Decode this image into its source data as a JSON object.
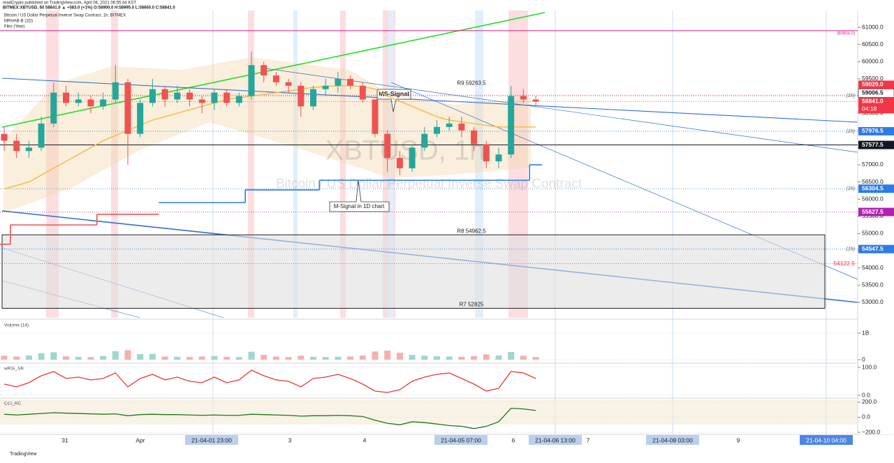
{
  "header": [
    "readCrypto published on TradingView.com, April 06, 2021 06:55:44 KST",
    "BITMEX:XBTUSD, 60  58841.0 ▲ +583.0 (+1%)  O:58900.0  H:58995.0  L:58660.0  C:58841.0"
  ],
  "chart_data": {
    "type": "candlestick",
    "title": "Bitcoin / US Dollar Perpetual Inverse Swap Contract, 1h, BITMEX",
    "indicators": [
      "MRHAB-B (1D)",
      "Fibo (Year)"
    ],
    "watermark": [
      "XBTUSD, 1h",
      "Bitcoin / US Dollar Perpetual Inverse Swap Contract"
    ],
    "up_color": "#26a69a",
    "down_color": "#ef5350",
    "open": [
      57900,
      57700,
      57400,
      57500,
      58200,
      59100,
      58800,
      58900,
      58700,
      58900,
      59400,
      57900,
      58800,
      59200,
      58900,
      59100,
      58900,
      58800,
      59100,
      58800,
      59000,
      59900,
      59600,
      59400,
      59300,
      58700,
      59200,
      59300,
      59500,
      59300,
      58900,
      57900,
      57200,
      56900,
      57500,
      57900,
      58100,
      58200,
      58000,
      57600,
      57100,
      57300,
      59000,
      58900
    ],
    "high": [
      58100,
      57900,
      57700,
      58400,
      59400,
      59300,
      59100,
      59000,
      59100,
      59900,
      59500,
      58900,
      59500,
      59300,
      59300,
      59200,
      59000,
      59200,
      59200,
      59100,
      60300,
      60000,
      59700,
      59500,
      59400,
      59300,
      59500,
      59700,
      59600,
      59400,
      58900,
      58000,
      57400,
      57600,
      58100,
      58300,
      58400,
      58400,
      58100,
      57700,
      57500,
      59300,
      59200,
      59000
    ],
    "low": [
      57400,
      57200,
      57200,
      57400,
      58100,
      58700,
      58700,
      58500,
      58600,
      58800,
      57000,
      57800,
      58700,
      58700,
      58800,
      58700,
      58500,
      58600,
      58700,
      58700,
      58900,
      59400,
      59300,
      59100,
      58400,
      58600,
      59000,
      59100,
      59200,
      58800,
      57800,
      56800,
      56700,
      56800,
      57400,
      57800,
      58000,
      57800,
      57400,
      56900,
      56900,
      57200,
      58800,
      58700
    ],
    "close": [
      57700,
      57400,
      57500,
      58200,
      59100,
      58800,
      58900,
      58700,
      58900,
      59400,
      57900,
      58800,
      59200,
      58900,
      59100,
      58900,
      58800,
      59100,
      58800,
      59000,
      59900,
      59600,
      59400,
      59300,
      58700,
      59200,
      59300,
      59500,
      59300,
      58900,
      57900,
      57200,
      56900,
      57500,
      57900,
      58100,
      58200,
      58000,
      57600,
      57100,
      57300,
      59000,
      58900,
      58841
    ],
    "overlays": [
      {
        "color": "#f5b942",
        "step": false,
        "values": [
          56300,
          56400,
          56500,
          56700,
          56900,
          57100,
          57300,
          57500,
          57700,
          57850,
          58000,
          58150,
          58300,
          58400,
          58500,
          58600,
          58700,
          58800,
          58900,
          58950,
          59000,
          59050,
          59100,
          59150,
          59200,
          59250,
          59280,
          59300,
          59300,
          59280,
          59200,
          59000,
          58850,
          58700,
          58550,
          58400,
          58300,
          58250,
          58200,
          58150,
          58100,
          58100,
          58100,
          58100
        ]
      },
      {
        "color": "#ef5350",
        "step": true,
        "values": [
          54690,
          55250,
          55250,
          55250,
          55250,
          55250,
          55250,
          55250,
          55560,
          55560,
          55560,
          55560,
          55560,
          null,
          null,
          null,
          null,
          null,
          null,
          null,
          null,
          null,
          null,
          null,
          null,
          null,
          null,
          null,
          null,
          null,
          null,
          null,
          null,
          null,
          null,
          null,
          null,
          null,
          null,
          null,
          null,
          null,
          null,
          null
        ]
      },
      {
        "color": "#2e7be6",
        "step": true,
        "values": [
          null,
          null,
          null,
          null,
          null,
          null,
          null,
          null,
          null,
          null,
          null,
          null,
          null,
          55900,
          55900,
          55900,
          55900,
          55900,
          55900,
          55900,
          56270,
          56270,
          56270,
          56270,
          56270,
          56270,
          56550,
          56550,
          56550,
          56550,
          56550,
          56550,
          56550,
          56550,
          56550,
          56550,
          56550,
          56550,
          56550,
          56550,
          56550,
          56550,
          56550,
          57000
        ]
      }
    ],
    "ylim": [
      52550,
      61490
    ],
    "yticks": [
      {
        "value": 61000,
        "label": "61000.0"
      },
      {
        "value": 60500,
        "label": "60500.0"
      },
      {
        "value": 60000,
        "label": "60000.0"
      },
      {
        "value": 59500,
        "label": "59500.0"
      },
      {
        "value": 59000,
        "label": "59000.0"
      },
      {
        "value": 58500,
        "label": "58500.0"
      },
      {
        "value": 58000,
        "label": "58000.0"
      },
      {
        "value": 57500,
        "label": "57500.0"
      },
      {
        "value": 57000,
        "label": "57000.0"
      },
      {
        "value": 56500,
        "label": "56500.0"
      },
      {
        "value": 56000,
        "label": "56000.0"
      },
      {
        "value": 55500,
        "label": "55500.0"
      },
      {
        "value": 55000,
        "label": "55000.0"
      },
      {
        "value": 54500,
        "label": "54500.0"
      },
      {
        "value": 54000,
        "label": "54000.0"
      },
      {
        "value": 53500,
        "label": "53500.0"
      },
      {
        "value": 53000,
        "label": "53000.0"
      }
    ],
    "x_labels": [
      "31",
      "Apr",
      "21-04-01  23:00",
      "3",
      "4",
      "21-04-05  07:00",
      "6",
      "21-04-06  13:00",
      "7",
      "21-04-08  03:00",
      "9",
      "21-04-10  04:00"
    ],
    "x_label_style": [
      "plain",
      "plain",
      "box",
      "plain",
      "plain",
      "box",
      "plain",
      "box",
      "plain",
      "box",
      "plain",
      "strong"
    ],
    "price_lines": [
      {
        "value": 60904,
        "label": "(60904.0)",
        "color": "#d81b8c",
        "style": "text"
      },
      {
        "value": 59029,
        "label": "59029.0",
        "color": "#f23645",
        "style": "badge"
      },
      {
        "value": 59006.5,
        "label": "59006.5",
        "color": "#ffffff",
        "style": "badge",
        "tag": "(1h)"
      },
      {
        "value": 58841,
        "label": "58841.0",
        "color": "#f23645",
        "style": "badge",
        "countdown": "04:18"
      },
      {
        "value": 57976.5,
        "label": "57976.5",
        "color": "#2e7be6",
        "style": "badge",
        "tag": "(1h)"
      },
      {
        "value": 57577.5,
        "label": "57577.5",
        "color": "#131722",
        "style": "badge"
      },
      {
        "value": 56304.5,
        "label": "56304.5",
        "color": "#2e7be6",
        "style": "badge",
        "tag": "(1h)"
      },
      {
        "value": 55627.5,
        "label": "55627.5",
        "color": "#b022b0",
        "style": "badge"
      },
      {
        "value": 54547.5,
        "label": "54547.5",
        "color": "#2e7be6",
        "style": "badge",
        "tag": "(1h)"
      },
      {
        "value": 54122.5,
        "label": "54122.5",
        "color": "#f23645",
        "style": "text"
      }
    ],
    "levels": [
      {
        "label": "R9 59263.5",
        "value": 59263.5
      },
      {
        "label": "R8 54962.5",
        "value": 54962.5
      },
      {
        "label": "R7 52825",
        "value": 52825
      }
    ],
    "zone": [
      52825,
      54962.5
    ],
    "annotations": [
      "MS-Signal",
      "M-Signal in 1D chart"
    ],
    "panes": [
      {
        "type": "bar",
        "title": "Volume (14)",
        "ylim": [
          -130000000,
          1450000000
        ],
        "yticks": [
          {
            "value": 1000000000,
            "label": "1B"
          },
          0
        ],
        "values": [
          150000000.0,
          120000000.0,
          160000000.0,
          240000000.0,
          280000000.0,
          130000000.0,
          110000000.0,
          100000000.0,
          140000000.0,
          320000000.0,
          360000000.0,
          210000000.0,
          220000000.0,
          120000000.0,
          110000000.0,
          100000000.0,
          120000000.0,
          140000000.0,
          110000000.0,
          100000000.0,
          300000000.0,
          180000000.0,
          120000000.0,
          100000000.0,
          150000000.0,
          110000000.0,
          100000000.0,
          110000000.0,
          120000000.0,
          160000000.0,
          310000000.0,
          340000000.0,
          260000000.0,
          180000000.0,
          150000000.0,
          130000000.0,
          120000000.0,
          110000000.0,
          140000000.0,
          200000000.0,
          160000000.0,
          290000000.0,
          150000000.0,
          100000000.0
        ]
      },
      {
        "type": "line",
        "title": "wRSI_SR",
        "color": "#e53935",
        "ylim": [
          -10,
          110
        ],
        "yticks": [
          {
            "value": 100,
            "label": "100.0"
          },
          {
            "value": 0,
            "label": "0.0"
          }
        ],
        "values": [
          40,
          30,
          45,
          70,
          85,
          60,
          65,
          55,
          60,
          80,
          30,
          60,
          75,
          55,
          65,
          50,
          45,
          65,
          45,
          55,
          90,
          70,
          55,
          50,
          30,
          60,
          65,
          75,
          60,
          40,
          15,
          10,
          20,
          50,
          65,
          75,
          80,
          60,
          40,
          15,
          25,
          85,
          80,
          60
        ]
      },
      {
        "type": "line",
        "title": "CCI_RC",
        "color": "#1b7a1b",
        "ylim": [
          -227,
          236
        ],
        "yticks": [
          {
            "value": 200,
            "label": "200.0"
          },
          {
            "value": 0,
            "label": "0.0"
          },
          {
            "value": -200,
            "label": "−200.0"
          }
        ],
        "values": [
          40,
          30,
          40,
          50,
          60,
          55,
          50,
          45,
          40,
          45,
          20,
          35,
          40,
          35,
          35,
          30,
          25,
          30,
          25,
          25,
          40,
          35,
          30,
          25,
          15,
          20,
          20,
          25,
          20,
          10,
          -40,
          -80,
          -100,
          -60,
          -70,
          -90,
          -110,
          -120,
          -150,
          -120,
          -60,
          120,
          110,
          90
        ]
      }
    ]
  },
  "footer": "TradingView"
}
